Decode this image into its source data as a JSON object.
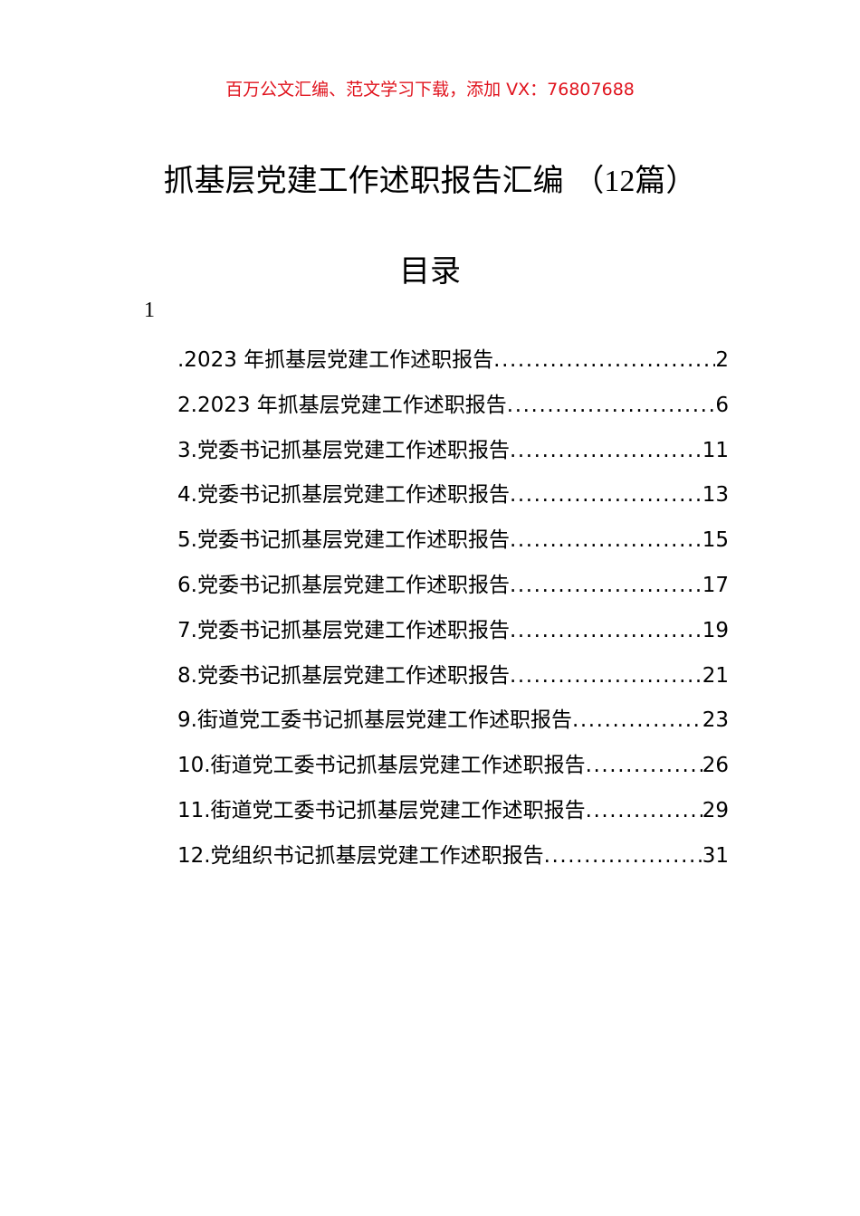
{
  "banner": "百万公文汇编、范文学习下载，添加 VX：76807688",
  "title": {
    "main": "抓基层党建工作述职报告汇编",
    "paren_open": "（",
    "count": "12",
    "unit": "篇",
    "paren_close": "）"
  },
  "toc_heading": "目录",
  "stray_marker": "1",
  "toc": [
    {
      "label": ".2023 年抓基层党建工作述职报告",
      "page": "2"
    },
    {
      "label": "2.2023 年抓基层党建工作述职报告",
      "page": "6"
    },
    {
      "label": "3.党委书记抓基层党建工作述职报告",
      "page": "11"
    },
    {
      "label": "4.党委书记抓基层党建工作述职报告",
      "page": "13"
    },
    {
      "label": "5.党委书记抓基层党建工作述职报告",
      "page": "15"
    },
    {
      "label": "6.党委书记抓基层党建工作述职报告",
      "page": "17"
    },
    {
      "label": "7.党委书记抓基层党建工作述职报告",
      "page": "19"
    },
    {
      "label": "8.党委书记抓基层党建工作述职报告",
      "page": "21"
    },
    {
      "label": "9.街道党工委书记抓基层党建工作述职报告",
      "page": "23"
    },
    {
      "label": "10.街道党工委书记抓基层党建工作述职报告",
      "page": "26"
    },
    {
      "label": "11.街道党工委书记抓基层党建工作述职报告",
      "page": "29"
    },
    {
      "label": "12.党组织书记抓基层党建工作述职报告",
      "page": "31"
    }
  ]
}
